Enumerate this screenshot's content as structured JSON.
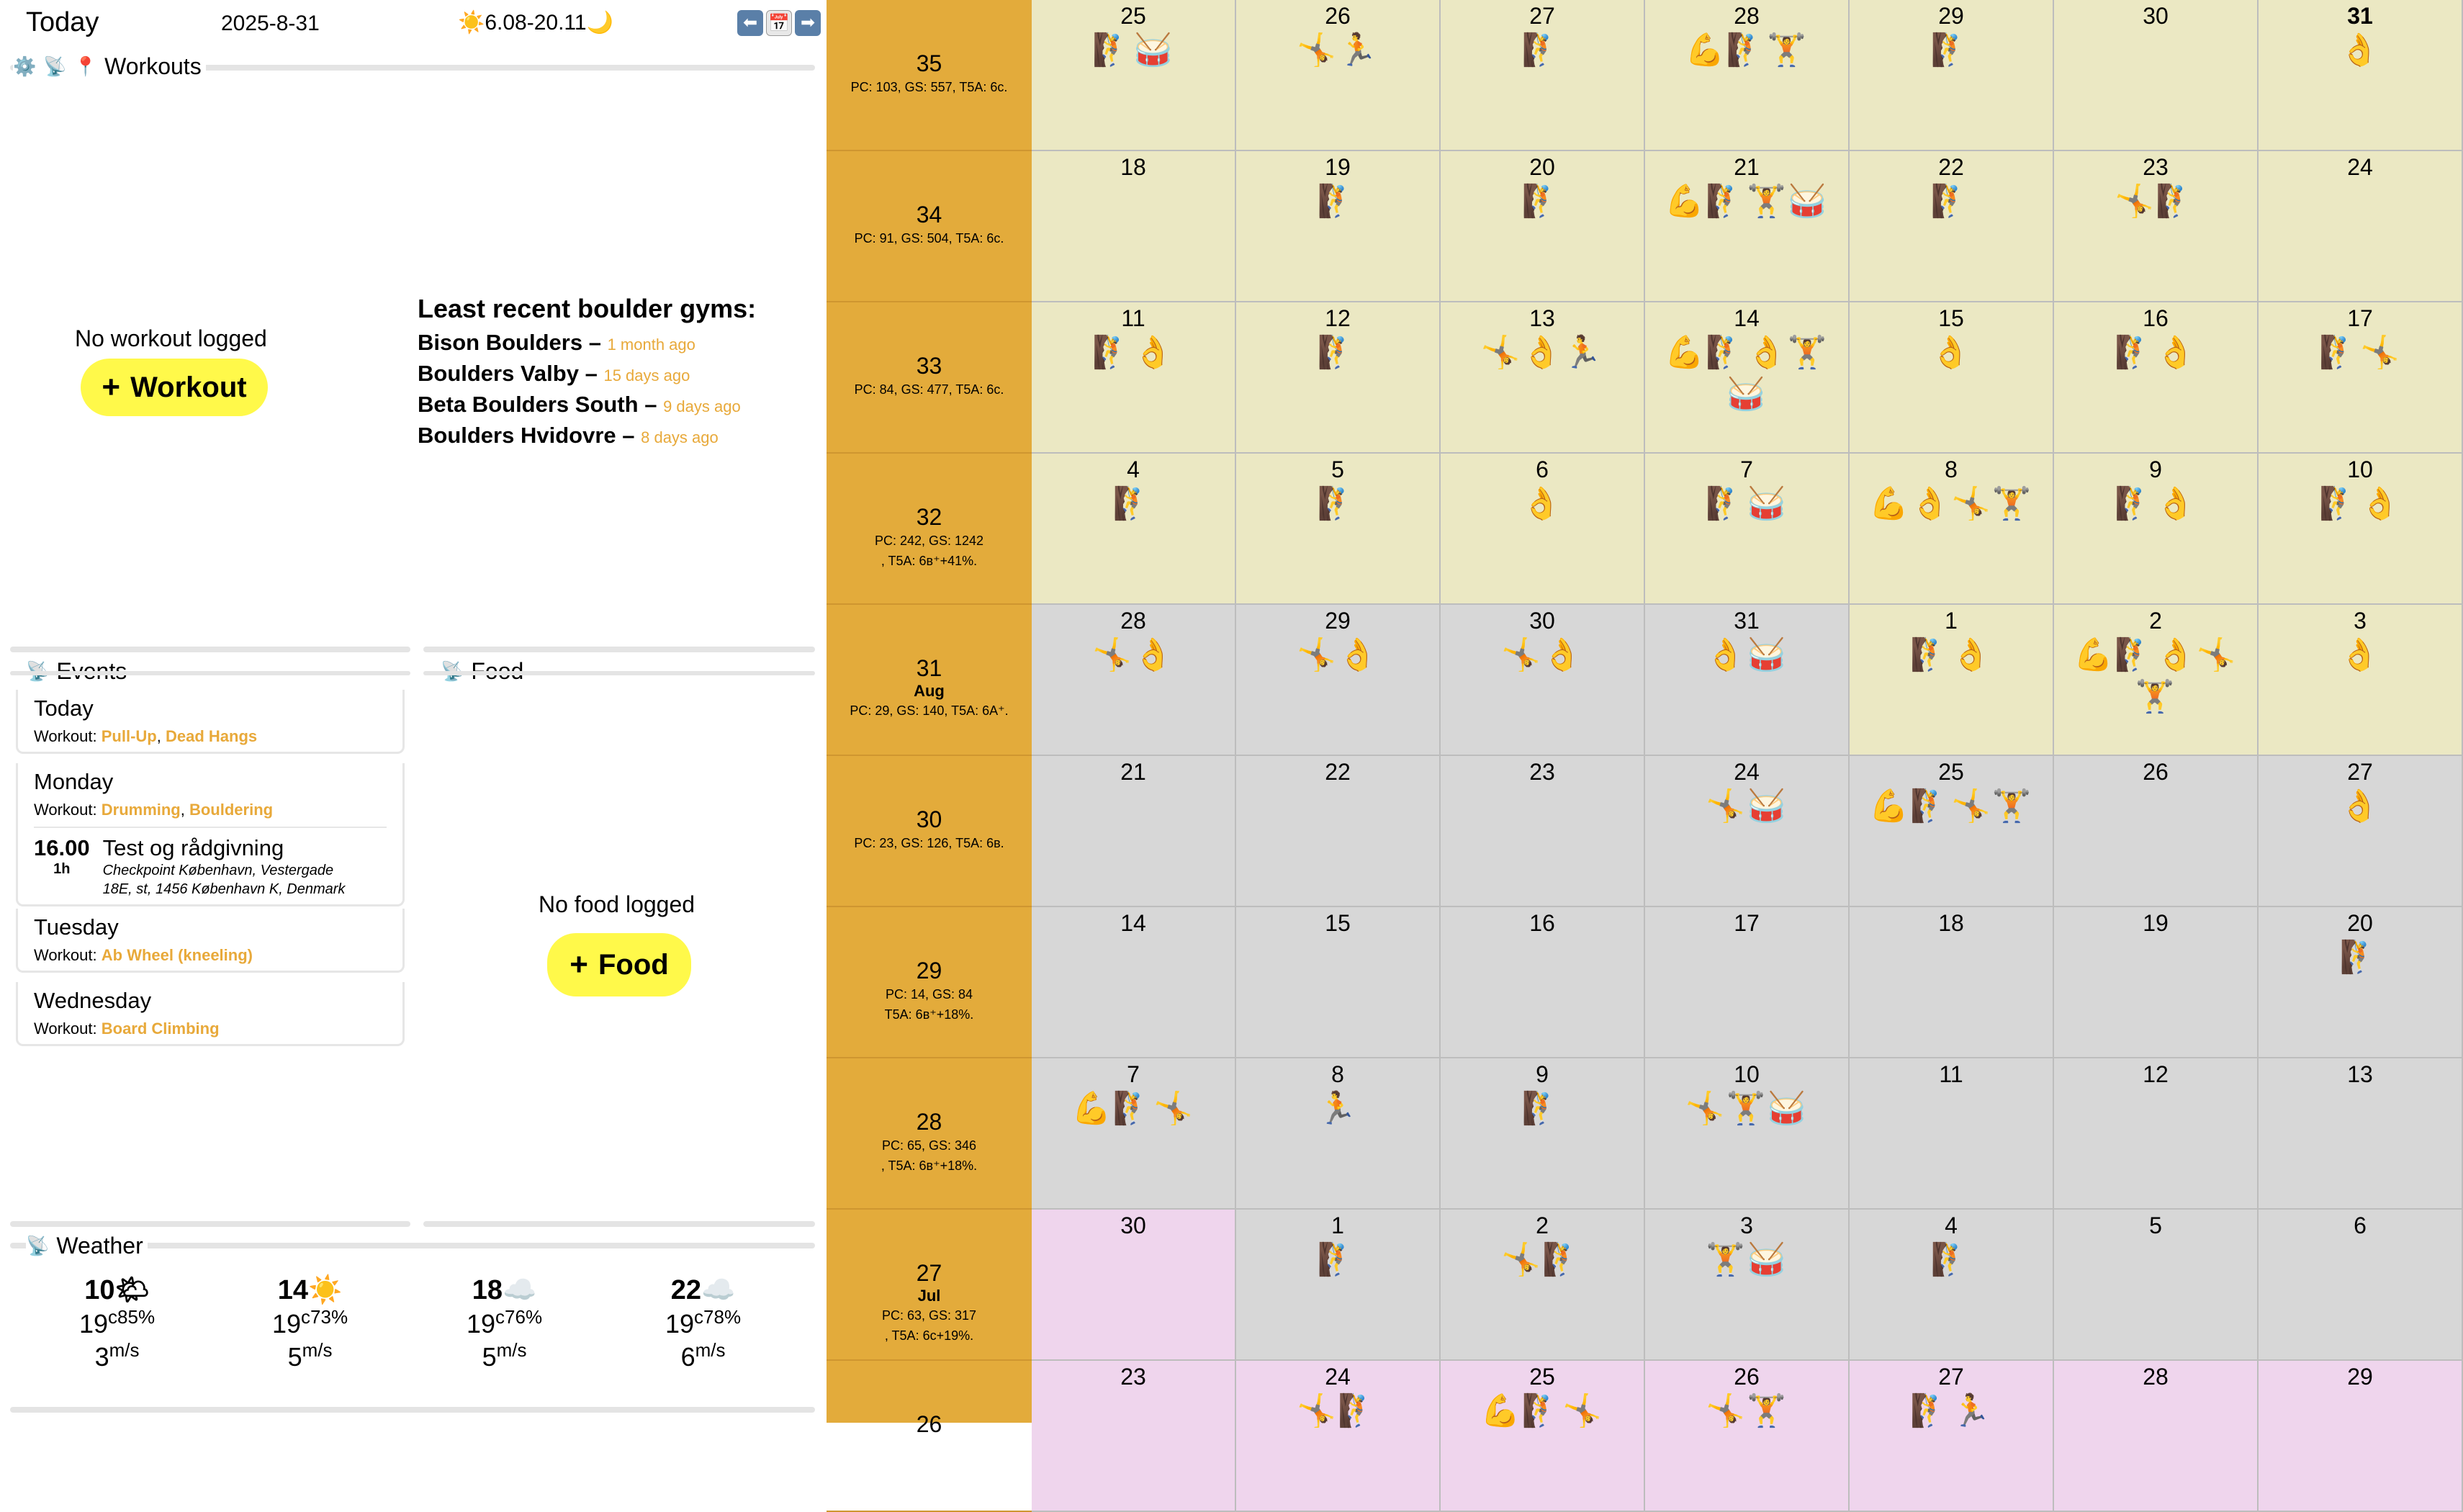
{
  "header": {
    "title": "Today",
    "date": "2025-8-31",
    "sun": "☀️6.08-20.11🌙",
    "nav_prev": "⬅",
    "nav_cal": "📅",
    "nav_next": "➡"
  },
  "workouts": {
    "label": "Workouts",
    "empty_text": "No workout logged",
    "add_label": "Workout",
    "gyms_title": "Least recent boulder gyms:",
    "gyms": [
      {
        "name": "Bison Boulders –",
        "ago": "1 month ago"
      },
      {
        "name": "Boulders Valby –",
        "ago": "15 days ago"
      },
      {
        "name": "Beta Boulders South –",
        "ago": "9 days ago"
      },
      {
        "name": "Boulders Hvidovre –",
        "ago": "8 days ago"
      }
    ]
  },
  "events": {
    "label": "Events",
    "workout_prefix": "Workout:",
    "days": [
      {
        "day": "Today",
        "workouts": [
          "Pull-Up",
          "Dead Hangs"
        ]
      },
      {
        "day": "Monday",
        "workouts": [
          "Drumming",
          "Bouldering"
        ],
        "event": {
          "time": "16.00",
          "duration": "1h",
          "title": "Test og rådgivning",
          "address1": "Checkpoint København, Vestergade",
          "address2": "18E, st, 1456 København K, Denmark"
        }
      },
      {
        "day": "Tuesday",
        "workouts": [
          "Ab Wheel (kneeling)"
        ]
      },
      {
        "day": "Wednesday",
        "workouts": [
          "Board Climbing"
        ]
      }
    ]
  },
  "food": {
    "label": "Food",
    "empty_text": "No food logged",
    "add_label": "Food"
  },
  "weather": {
    "label": "Weather",
    "items": [
      {
        "hour": "10",
        "icon": "🌤",
        "unit": "c",
        "temp": "19",
        "humidity": "85%",
        "wind": "3",
        "wind_unit": "m/s"
      },
      {
        "hour": "14",
        "icon": "☀️",
        "unit": "c",
        "temp": "19",
        "humidity": "73%",
        "wind": "5",
        "wind_unit": "m/s"
      },
      {
        "hour": "18",
        "icon": "☁️",
        "unit": "c",
        "temp": "19",
        "humidity": "76%",
        "wind": "5",
        "wind_unit": "m/s"
      },
      {
        "hour": "22",
        "icon": "☁️",
        "unit": "c",
        "temp": "19",
        "humidity": "78%",
        "wind": "6",
        "wind_unit": "m/s"
      }
    ]
  },
  "weeks": [
    {
      "num": "35",
      "month": "",
      "stats": [
        "PC: 103, GS: 557, T5A: 6c."
      ]
    },
    {
      "num": "34",
      "month": "",
      "stats": [
        "PC: 91, GS: 504, T5A: 6c."
      ]
    },
    {
      "num": "33",
      "month": "",
      "stats": [
        "PC: 84, GS: 477, T5A: 6c."
      ]
    },
    {
      "num": "32",
      "month": "",
      "stats": [
        "PC: 242, GS: 1242",
        ", T5A: 6в⁺+41%."
      ]
    },
    {
      "num": "31",
      "month": "Aug",
      "stats": [
        "PC: 29, GS: 140, T5A: 6A⁺."
      ]
    },
    {
      "num": "30",
      "month": "",
      "stats": [
        "PC: 23, GS: 126, T5A: 6в."
      ]
    },
    {
      "num": "29",
      "month": "",
      "stats": [
        "PC: 14, GS: 84",
        "T5A: 6в⁺+18%."
      ]
    },
    {
      "num": "28",
      "month": "",
      "stats": [
        "PC: 65, GS: 346",
        ", T5A: 6в⁺+18%."
      ]
    },
    {
      "num": "27",
      "month": "Jul",
      "stats": [
        "PC: 63, GS: 317",
        ", T5A: 6c+19%."
      ]
    },
    {
      "num": "26",
      "month": "",
      "stats": []
    }
  ],
  "calendar": [
    [
      {
        "d": "25",
        "c": "y",
        "e": "🧗🥁"
      },
      {
        "d": "26",
        "c": "y",
        "e": "🤸🏃"
      },
      {
        "d": "27",
        "c": "y",
        "e": "🧗"
      },
      {
        "d": "28",
        "c": "y",
        "e": "💪🧗🏋️"
      },
      {
        "d": "29",
        "c": "y",
        "e": "🧗"
      },
      {
        "d": "30",
        "c": "y",
        "e": ""
      },
      {
        "d": "31",
        "c": "y",
        "e": "👌",
        "bold": true
      }
    ],
    [
      {
        "d": "18",
        "c": "y",
        "e": ""
      },
      {
        "d": "19",
        "c": "y",
        "e": "🧗"
      },
      {
        "d": "20",
        "c": "y",
        "e": "🧗"
      },
      {
        "d": "21",
        "c": "y",
        "e": "💪🧗🏋️🥁"
      },
      {
        "d": "22",
        "c": "y",
        "e": "🧗"
      },
      {
        "d": "23",
        "c": "y",
        "e": "🤸🧗"
      },
      {
        "d": "24",
        "c": "y",
        "e": ""
      }
    ],
    [
      {
        "d": "11",
        "c": "y",
        "e": "🧗👌"
      },
      {
        "d": "12",
        "c": "y",
        "e": "🧗"
      },
      {
        "d": "13",
        "c": "y",
        "e": "🤸👌🏃"
      },
      {
        "d": "14",
        "c": "y",
        "e": "💪🧗👌🏋️🥁"
      },
      {
        "d": "15",
        "c": "y",
        "e": "👌"
      },
      {
        "d": "16",
        "c": "y",
        "e": "🧗👌"
      },
      {
        "d": "17",
        "c": "y",
        "e": "🧗🤸"
      }
    ],
    [
      {
        "d": "4",
        "c": "y",
        "e": "🧗"
      },
      {
        "d": "5",
        "c": "y",
        "e": "🧗"
      },
      {
        "d": "6",
        "c": "y",
        "e": "👌"
      },
      {
        "d": "7",
        "c": "y",
        "e": "🧗🥁"
      },
      {
        "d": "8",
        "c": "y",
        "e": "💪👌🤸🏋️"
      },
      {
        "d": "9",
        "c": "y",
        "e": "🧗👌"
      },
      {
        "d": "10",
        "c": "y",
        "e": "🧗👌"
      }
    ],
    [
      {
        "d": "28",
        "c": "g",
        "e": "🤸👌"
      },
      {
        "d": "29",
        "c": "g",
        "e": "🤸👌"
      },
      {
        "d": "30",
        "c": "g",
        "e": "🤸👌"
      },
      {
        "d": "31",
        "c": "g",
        "e": "👌🥁"
      },
      {
        "d": "1",
        "c": "y",
        "e": "🧗👌"
      },
      {
        "d": "2",
        "c": "y",
        "e": "💪🧗👌🤸🏋️"
      },
      {
        "d": "3",
        "c": "y",
        "e": "👌"
      }
    ],
    [
      {
        "d": "21",
        "c": "g",
        "e": ""
      },
      {
        "d": "22",
        "c": "g",
        "e": ""
      },
      {
        "d": "23",
        "c": "g",
        "e": ""
      },
      {
        "d": "24",
        "c": "g",
        "e": "🤸🥁"
      },
      {
        "d": "25",
        "c": "g",
        "e": "💪🧗🤸🏋️"
      },
      {
        "d": "26",
        "c": "g",
        "e": ""
      },
      {
        "d": "27",
        "c": "g",
        "e": "👌"
      }
    ],
    [
      {
        "d": "14",
        "c": "g",
        "e": ""
      },
      {
        "d": "15",
        "c": "g",
        "e": ""
      },
      {
        "d": "16",
        "c": "g",
        "e": ""
      },
      {
        "d": "17",
        "c": "g",
        "e": ""
      },
      {
        "d": "18",
        "c": "g",
        "e": ""
      },
      {
        "d": "19",
        "c": "g",
        "e": ""
      },
      {
        "d": "20",
        "c": "g",
        "e": "🧗"
      }
    ],
    [
      {
        "d": "7",
        "c": "g",
        "e": "💪🧗🤸"
      },
      {
        "d": "8",
        "c": "g",
        "e": "🏃"
      },
      {
        "d": "9",
        "c": "g",
        "e": "🧗"
      },
      {
        "d": "10",
        "c": "g",
        "e": "🤸🏋️🥁"
      },
      {
        "d": "11",
        "c": "g",
        "e": ""
      },
      {
        "d": "12",
        "c": "g",
        "e": ""
      },
      {
        "d": "13",
        "c": "g",
        "e": ""
      }
    ],
    [
      {
        "d": "30",
        "c": "p",
        "e": ""
      },
      {
        "d": "1",
        "c": "g",
        "e": "🧗"
      },
      {
        "d": "2",
        "c": "g",
        "e": "🤸🧗"
      },
      {
        "d": "3",
        "c": "g",
        "e": "🏋️🥁"
      },
      {
        "d": "4",
        "c": "g",
        "e": "🧗"
      },
      {
        "d": "5",
        "c": "g",
        "e": ""
      },
      {
        "d": "6",
        "c": "g",
        "e": ""
      }
    ],
    [
      {
        "d": "23",
        "c": "p",
        "e": ""
      },
      {
        "d": "24",
        "c": "p",
        "e": "🤸🧗"
      },
      {
        "d": "25",
        "c": "p",
        "e": "💪🧗🤸"
      },
      {
        "d": "26",
        "c": "p",
        "e": "🤸🏋️"
      },
      {
        "d": "27",
        "c": "p",
        "e": "🧗🏃"
      },
      {
        "d": "28",
        "c": "p",
        "e": ""
      },
      {
        "d": "29",
        "c": "p",
        "e": ""
      }
    ]
  ]
}
